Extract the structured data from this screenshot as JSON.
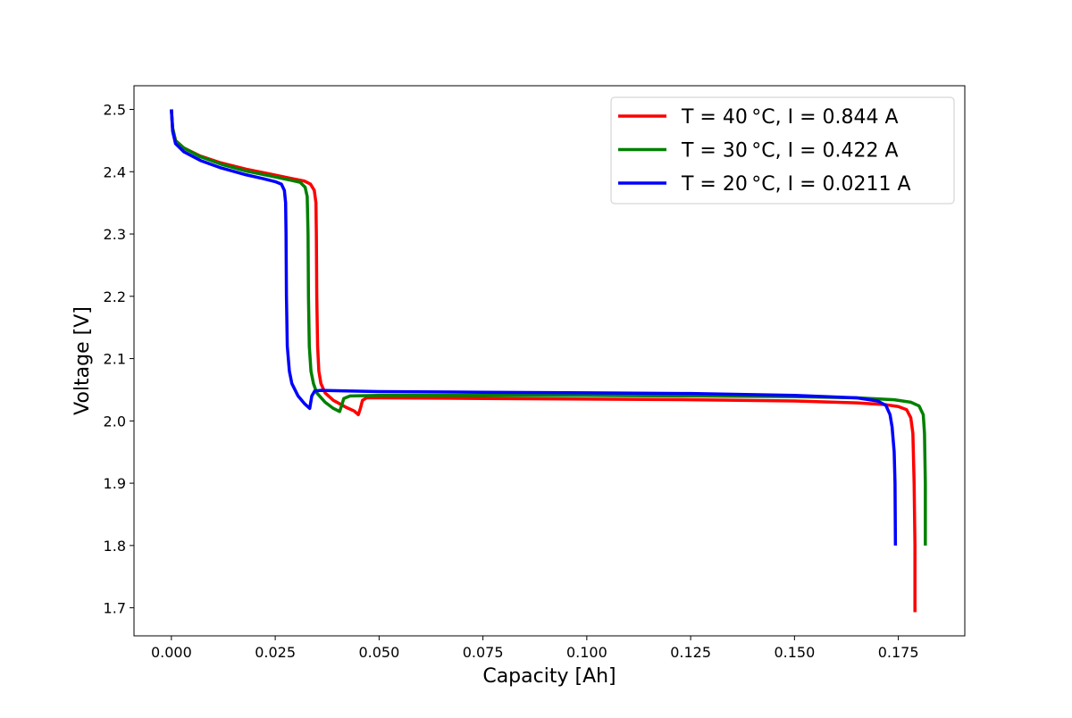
{
  "chart_data": {
    "type": "line",
    "xlabel": "Capacity [Ah]",
    "ylabel": "Voltage [V]",
    "xlim": [
      -0.009,
      0.191
    ],
    "ylim": [
      1.655,
      2.538
    ],
    "xticks": [
      0.0,
      0.025,
      0.05,
      0.075,
      0.1,
      0.125,
      0.15,
      0.175
    ],
    "xtick_labels": [
      "0.000",
      "0.025",
      "0.050",
      "0.075",
      "0.100",
      "0.125",
      "0.150",
      "0.175"
    ],
    "yticks": [
      1.7,
      1.8,
      1.9,
      2.0,
      2.1,
      2.2,
      2.3,
      2.4,
      2.5
    ],
    "ytick_labels": [
      "1.7",
      "1.8",
      "1.9",
      "2.0",
      "2.1",
      "2.2",
      "2.3",
      "2.4",
      "2.5"
    ],
    "grid": false,
    "legend_position": "top-right",
    "series": [
      {
        "name": "T = 40 °C, I = 0.844 A",
        "color": "#ff0000",
        "x": [
          0.0,
          0.0003,
          0.001,
          0.003,
          0.007,
          0.012,
          0.018,
          0.024,
          0.029,
          0.032,
          0.0335,
          0.0344,
          0.0348,
          0.0349,
          0.035,
          0.0352,
          0.0355,
          0.036,
          0.037,
          0.039,
          0.042,
          0.044,
          0.045,
          0.0455,
          0.046,
          0.047,
          0.05,
          0.075,
          0.1,
          0.125,
          0.15,
          0.165,
          0.172,
          0.175,
          0.177,
          0.178,
          0.1785,
          0.1788,
          0.179,
          0.179
        ],
        "y": [
          2.5,
          2.47,
          2.45,
          2.438,
          2.425,
          2.414,
          2.404,
          2.396,
          2.389,
          2.385,
          2.38,
          2.37,
          2.35,
          2.3,
          2.2,
          2.12,
          2.08,
          2.06,
          2.045,
          2.033,
          2.022,
          2.016,
          2.01,
          2.02,
          2.033,
          2.037,
          2.037,
          2.036,
          2.035,
          2.034,
          2.032,
          2.029,
          2.026,
          2.023,
          2.018,
          2.005,
          1.98,
          1.9,
          1.8,
          1.693
        ]
      },
      {
        "name": "T = 30 °C, I = 0.422 A",
        "color": "#008000",
        "x": [
          0.0,
          0.0003,
          0.001,
          0.003,
          0.007,
          0.012,
          0.018,
          0.024,
          0.029,
          0.031,
          0.0322,
          0.0327,
          0.0329,
          0.033,
          0.0332,
          0.0336,
          0.0342,
          0.035,
          0.037,
          0.039,
          0.0405,
          0.041,
          0.0415,
          0.043,
          0.05,
          0.075,
          0.1,
          0.125,
          0.15,
          0.165,
          0.174,
          0.178,
          0.18,
          0.181,
          0.1813,
          0.1815,
          0.1815
        ],
        "y": [
          2.5,
          2.47,
          2.45,
          2.438,
          2.424,
          2.412,
          2.401,
          2.393,
          2.386,
          2.383,
          2.375,
          2.36,
          2.3,
          2.2,
          2.12,
          2.08,
          2.06,
          2.045,
          2.03,
          2.02,
          2.015,
          2.025,
          2.036,
          2.04,
          2.041,
          2.041,
          2.041,
          2.04,
          2.039,
          2.037,
          2.034,
          2.03,
          2.024,
          2.01,
          1.98,
          1.9,
          1.8
        ]
      },
      {
        "name": "T = 20 °C, I = 0.0211 A",
        "color": "#0000ff",
        "x": [
          0.0,
          0.0003,
          0.001,
          0.003,
          0.007,
          0.012,
          0.018,
          0.022,
          0.025,
          0.0265,
          0.0272,
          0.0275,
          0.0276,
          0.0277,
          0.0279,
          0.0284,
          0.029,
          0.0305,
          0.032,
          0.0333,
          0.0338,
          0.0345,
          0.036,
          0.05,
          0.075,
          0.1,
          0.125,
          0.15,
          0.165,
          0.17,
          0.172,
          0.173,
          0.1735,
          0.174,
          0.1742,
          0.1743
        ],
        "y": [
          2.5,
          2.465,
          2.445,
          2.432,
          2.418,
          2.406,
          2.395,
          2.389,
          2.384,
          2.38,
          2.37,
          2.35,
          2.3,
          2.2,
          2.12,
          2.08,
          2.06,
          2.04,
          2.028,
          2.02,
          2.04,
          2.048,
          2.049,
          2.047,
          2.046,
          2.045,
          2.044,
          2.041,
          2.037,
          2.032,
          2.025,
          2.01,
          1.99,
          1.95,
          1.9,
          1.8
        ]
      }
    ]
  }
}
